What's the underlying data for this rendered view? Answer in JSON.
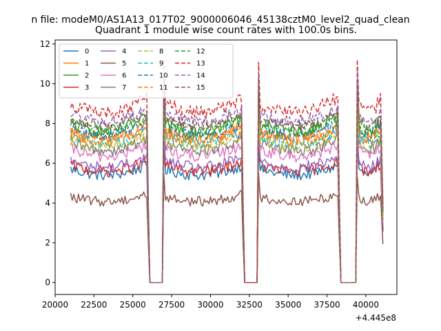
{
  "chart_data": {
    "type": "line",
    "suptitle": "n file: modeM0/AS1A13_017T02_9000006046_45138cztM0_level2_quad_clean",
    "title": "Quadrant 1 module wise count rates with 100.0s bins.",
    "xlabel": "",
    "ylabel": "",
    "xlim": [
      20000,
      42000
    ],
    "ylim": [
      -0.6,
      12.2
    ],
    "x_offset_label": "+4.445e8",
    "x_ticks": [
      20000,
      22500,
      25000,
      27500,
      30000,
      32500,
      35000,
      37500,
      40000
    ],
    "x_tick_labels": [
      "20000",
      "22500",
      "25000",
      "27500",
      "30000",
      "32500",
      "35000",
      "37500",
      "40000"
    ],
    "y_ticks": [
      0,
      2,
      4,
      6,
      8,
      10,
      12
    ],
    "y_tick_labels": [
      "0",
      "2",
      "4",
      "6",
      "8",
      "10",
      "12"
    ],
    "bin_seconds": 100,
    "orbits": [
      {
        "start": 21000,
        "end": 25900,
        "tail": 26000,
        "gap_until": 26850
      },
      {
        "start": 27000,
        "end": 32000,
        "tail": 32100,
        "gap_until": 32900
      },
      {
        "start": 33100,
        "end": 38200,
        "tail": 38300,
        "gap_until": 39300
      },
      {
        "start": 39450,
        "end": 41000,
        "tail": 41100,
        "gap_until": 41100
      }
    ],
    "legend_position": "upper-left",
    "legend_columns": 4,
    "series": [
      {
        "name": "0",
        "color": "#1f77b4",
        "dash": "solid",
        "level": 5.7,
        "noise": 0.28
      },
      {
        "name": "1",
        "color": "#ff7f0e",
        "dash": "solid",
        "level": 7.6,
        "noise": 0.35
      },
      {
        "name": "2",
        "color": "#2ca02c",
        "dash": "solid",
        "level": 8.0,
        "noise": 0.35
      },
      {
        "name": "3",
        "color": "#d62728",
        "dash": "solid",
        "level": 5.9,
        "noise": 0.3
      },
      {
        "name": "4",
        "color": "#9467bd",
        "dash": "solid",
        "level": 6.1,
        "noise": 0.3
      },
      {
        "name": "5",
        "color": "#8c564b",
        "dash": "solid",
        "level": 4.3,
        "noise": 0.25
      },
      {
        "name": "6",
        "color": "#e377c2",
        "dash": "solid",
        "level": 6.7,
        "noise": 0.3
      },
      {
        "name": "7",
        "color": "#7f7f7f",
        "dash": "solid",
        "level": 7.0,
        "noise": 0.3
      },
      {
        "name": "8",
        "color": "#bcbd22",
        "dash": "dashed",
        "level": 7.2,
        "noise": 0.3
      },
      {
        "name": "9",
        "color": "#17becf",
        "dash": "dashed",
        "level": 7.4,
        "noise": 0.3
      },
      {
        "name": "10",
        "color": "#1f77b4",
        "dash": "dashed",
        "level": 7.8,
        "noise": 0.3
      },
      {
        "name": "11",
        "color": "#ff7f0e",
        "dash": "dashed",
        "level": 7.5,
        "noise": 0.3
      },
      {
        "name": "12",
        "color": "#2ca02c",
        "dash": "dashed",
        "level": 8.1,
        "noise": 0.3
      },
      {
        "name": "13",
        "color": "#d62728",
        "dash": "dashed",
        "level": 9.0,
        "noise": 0.35
      },
      {
        "name": "14",
        "color": "#9467bd",
        "dash": "dashed",
        "level": 8.5,
        "noise": 0.3
      },
      {
        "name": "15",
        "color": "#8c564b",
        "dash": "dashed",
        "level": 8.3,
        "noise": 0.3
      }
    ]
  }
}
